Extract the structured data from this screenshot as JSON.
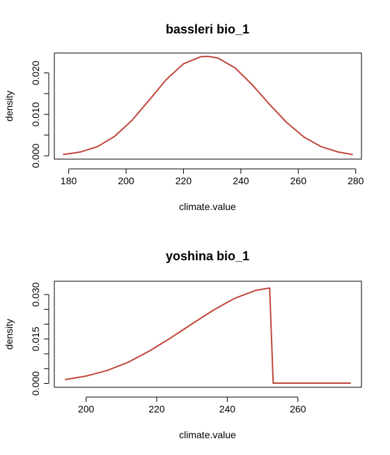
{
  "chart_data": [
    {
      "type": "line",
      "title": "bassleri bio_1",
      "xlabel": "climate.value",
      "ylabel": "density",
      "xlim": [
        175,
        282
      ],
      "ylim": [
        -0.0008,
        0.0248
      ],
      "x_ticks": [
        180,
        200,
        220,
        240,
        260,
        280
      ],
      "x_tick_labels": [
        "180",
        "200",
        "220",
        "240",
        "260",
        "280"
      ],
      "y_ticks": [
        0,
        0.005,
        0.01,
        0.015,
        0.02
      ],
      "y_tick_labels": [
        "0.000",
        "",
        "0.010",
        "",
        "0.020"
      ],
      "grid": false,
      "series": [
        {
          "color": "#c0473a",
          "x": [
            178,
            184,
            190,
            196,
            202,
            208,
            214,
            220,
            226,
            228.5,
            232,
            238,
            244,
            250,
            256,
            262,
            268,
            274,
            279
          ],
          "y": [
            0.0003,
            0.0009,
            0.0022,
            0.0047,
            0.0085,
            0.0134,
            0.0184,
            0.0222,
            0.0239,
            0.024,
            0.0236,
            0.0212,
            0.0171,
            0.0124,
            0.008,
            0.0045,
            0.0022,
            0.0009,
            0.0003
          ]
        }
      ]
    },
    {
      "type": "line",
      "title": "yoshina bio_1",
      "xlabel": "climate.value",
      "ylabel": "density",
      "xlim": [
        191,
        278
      ],
      "ylim": [
        -0.0013,
        0.0345
      ],
      "x_ticks": [
        200,
        220,
        240,
        260
      ],
      "x_tick_labels": [
        "200",
        "220",
        "240",
        "260"
      ],
      "y_ticks": [
        0,
        0.005,
        0.01,
        0.015,
        0.02,
        0.025,
        0.03
      ],
      "y_tick_labels": [
        "0.000",
        "",
        "",
        "0.015",
        "",
        "",
        "0.030"
      ],
      "grid": false,
      "series": [
        {
          "color": "#c0473a",
          "x": [
            194,
            200,
            206,
            212,
            218,
            224,
            230,
            236,
            242,
            248,
            252,
            253,
            260,
            268,
            275
          ],
          "y": [
            0.0013,
            0.0025,
            0.0044,
            0.0072,
            0.011,
            0.0154,
            0.0201,
            0.0247,
            0.0287,
            0.0314,
            0.0322,
            0.0001,
            0.0001,
            0.0001,
            0.0001
          ]
        }
      ]
    }
  ]
}
